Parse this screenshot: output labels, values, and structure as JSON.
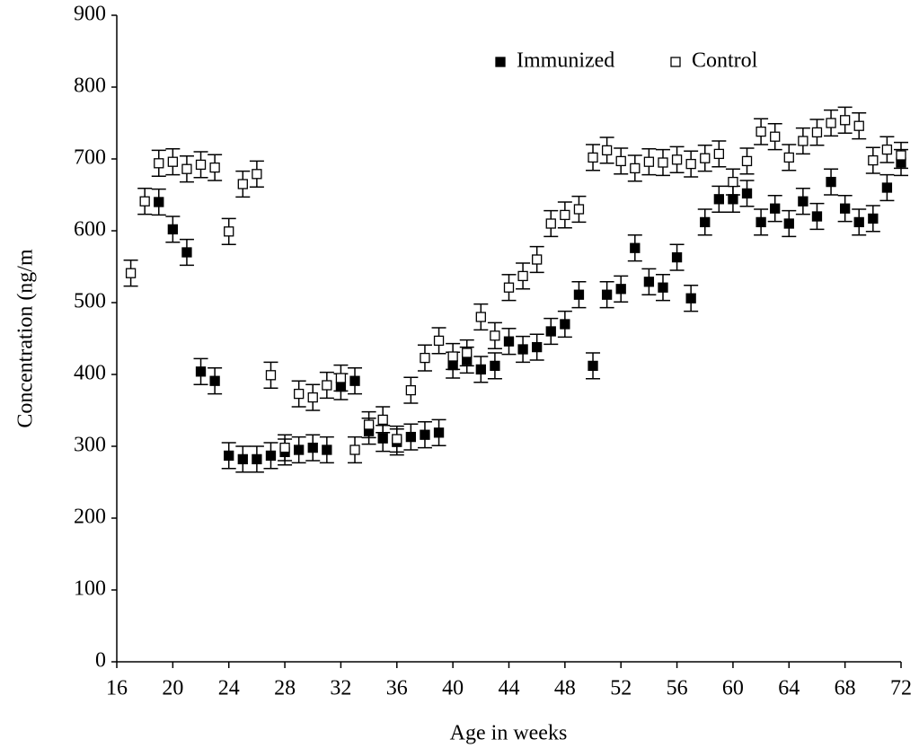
{
  "chart_data": {
    "type": "scatter",
    "x_label": "Age in weeks",
    "y_label": "Concentration (ng/m",
    "xlim": [
      16,
      72
    ],
    "xticks": [
      16,
      20,
      24,
      28,
      32,
      36,
      40,
      44,
      48,
      52,
      56,
      60,
      64,
      68,
      72
    ],
    "ylim": [
      0,
      900
    ],
    "yticks": [
      0,
      100,
      200,
      300,
      400,
      500,
      600,
      700,
      800,
      900
    ],
    "x": [
      17,
      18,
      19,
      20,
      21,
      22,
      23,
      24,
      25,
      26,
      27,
      28,
      29,
      30,
      31,
      32,
      33,
      34,
      35,
      36,
      37,
      38,
      39,
      40,
      41,
      42,
      43,
      44,
      45,
      46,
      47,
      48,
      49,
      50,
      51,
      52,
      53,
      54,
      55,
      56,
      57,
      58,
      59,
      60,
      61,
      62,
      63,
      64,
      65,
      66,
      67,
      68,
      69,
      70,
      71,
      72
    ],
    "series": [
      {
        "name": "Immunized",
        "color": "#000000",
        "marker": "filled",
        "values": [
          null,
          null,
          640,
          602,
          570,
          404,
          391,
          287,
          282,
          282,
          287,
          292,
          295,
          298,
          295,
          383,
          391,
          321,
          311,
          306,
          313,
          316,
          319,
          413,
          420,
          407,
          412,
          446,
          435,
          438,
          460,
          470,
          511,
          412,
          511,
          519,
          576,
          529,
          521,
          563,
          506,
          612,
          644,
          644,
          652,
          612,
          631,
          610,
          641,
          620,
          668,
          631,
          612,
          617,
          660,
          695
        ],
        "errors": [
          null,
          null,
          18,
          18,
          18,
          18,
          18,
          18,
          18,
          18,
          18,
          18,
          18,
          18,
          18,
          18,
          18,
          18,
          18,
          18,
          18,
          18,
          18,
          18,
          18,
          18,
          18,
          18,
          18,
          18,
          18,
          18,
          18,
          18,
          18,
          18,
          18,
          18,
          18,
          18,
          18,
          18,
          18,
          18,
          18,
          18,
          18,
          18,
          18,
          18,
          18,
          18,
          18,
          18,
          18,
          18
        ]
      },
      {
        "name": "Control",
        "color": "#000000",
        "marker": "open",
        "values": [
          541,
          641,
          694,
          696,
          686,
          692,
          688,
          599,
          665,
          679,
          399,
          298,
          373,
          368,
          385,
          395,
          295,
          330,
          337,
          310,
          378,
          423,
          447,
          425,
          430,
          480,
          454,
          521,
          537,
          560,
          610,
          622,
          630,
          702,
          712,
          697,
          687,
          696,
          695,
          699,
          693,
          701,
          707,
          668,
          697,
          738,
          731,
          702,
          725,
          737,
          750,
          754,
          746,
          698,
          713,
          705
        ],
        "errors": [
          18,
          18,
          18,
          18,
          18,
          18,
          18,
          18,
          18,
          18,
          18,
          18,
          18,
          18,
          18,
          18,
          18,
          18,
          18,
          18,
          18,
          18,
          18,
          18,
          18,
          18,
          18,
          18,
          18,
          18,
          18,
          18,
          18,
          18,
          18,
          18,
          18,
          18,
          18,
          18,
          18,
          18,
          18,
          18,
          18,
          18,
          18,
          18,
          18,
          18,
          18,
          18,
          18,
          18,
          18,
          18
        ]
      }
    ],
    "legend": "top-right"
  }
}
